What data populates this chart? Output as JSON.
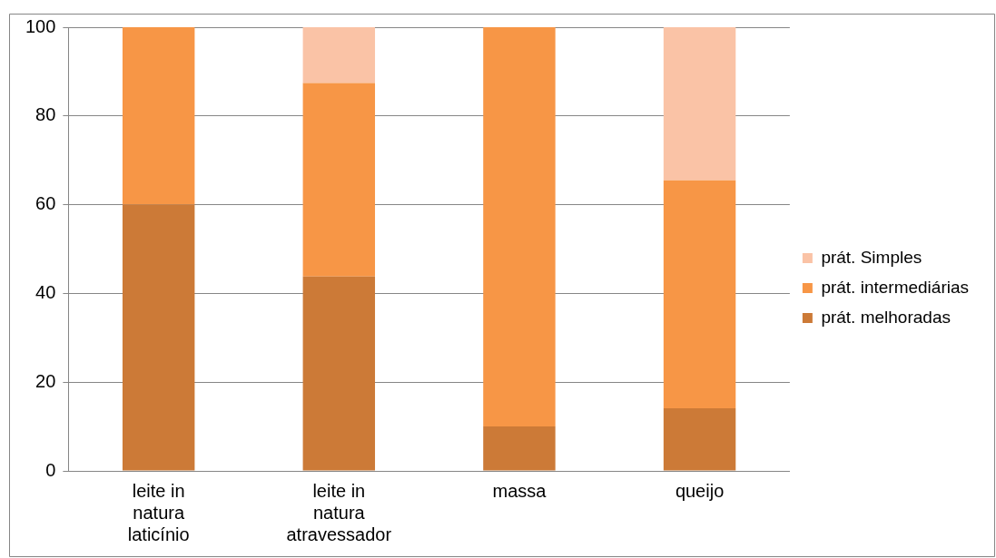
{
  "chart_data": {
    "type": "bar",
    "stacked": true,
    "categories": [
      "leite in natura laticínio",
      "leite in natura atravessador",
      "massa",
      "queijo"
    ],
    "series": [
      {
        "name": "prát. melhoradas",
        "color": "#cc7a37",
        "values": [
          60,
          43.8,
          10,
          14.1
        ]
      },
      {
        "name": "prát. intermediárias",
        "color": "#f79646",
        "values": [
          40,
          43.6,
          90,
          51.4
        ]
      },
      {
        "name": "prát. Simples",
        "color": "#fac3a6",
        "values": [
          0,
          12.6,
          0,
          34.5
        ]
      }
    ],
    "ylim": [
      0,
      100
    ],
    "yticks": [
      0,
      20,
      40,
      60,
      80,
      100
    ],
    "grid": "y",
    "legend": "right"
  }
}
